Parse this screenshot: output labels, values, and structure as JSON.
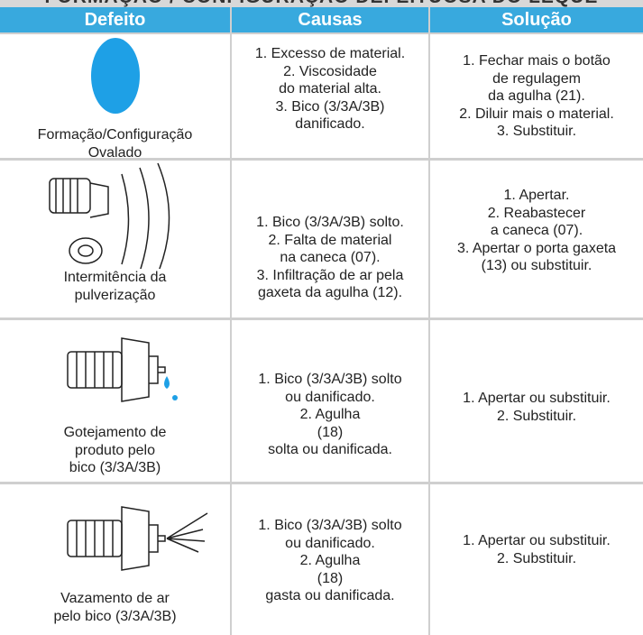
{
  "header": {
    "title": "FORMAÇÃO / CONFIGURAÇÃO DEFEITUOSA DO LEQUE"
  },
  "table": {
    "columns": [
      "Defeito",
      "Causas",
      "Solução"
    ],
    "rows": [
      {
        "defeito": [
          "Formação/Configuração",
          "Ovalado"
        ],
        "causas": [
          "1. Excesso de material.",
          "2. Viscosidade",
          "do material alta.",
          "3. Bico (3/3A/3B)",
          "danificado."
        ],
        "solucao": [
          "1. Fechar mais o botão",
          "de regulagem",
          "da agulha (21).",
          "2. Diluir mais o material.",
          "3. Substituir."
        ]
      },
      {
        "defeito": [
          "Intermitência da",
          "pulverização"
        ],
        "causas": [
          "1. Bico (3/3A/3B) solto.",
          "2. Falta de material",
          "na caneca (07).",
          "3. Infiltração de ar pela",
          "gaxeta da agulha (12)."
        ],
        "solucao": [
          "1. Apertar.",
          "2. Reabastecer",
          "a caneca (07).",
          "3. Apertar o porta gaxeta",
          "(13) ou substituir."
        ]
      },
      {
        "defeito": [
          "Gotejamento de",
          "produto pelo",
          "bico (3/3A/3B)"
        ],
        "causas": [
          "1. Bico (3/3A/3B) solto",
          "ou danificado.",
          "2. Agulha",
          "(18)",
          "solta ou danificada."
        ],
        "solucao": [
          "1. Apertar ou substituir.",
          "2. Substituir."
        ]
      },
      {
        "defeito": [
          "Vazamento de ar",
          "pelo bico (3/3A/3B)"
        ],
        "causas": [
          "1. Bico (3/3A/3B) solto",
          "ou danificado.",
          "2. Agulha",
          "(18)",
          "gasta ou danificada."
        ],
        "solucao": [
          "1. Apertar ou substituir.",
          "2. Substituir."
        ]
      }
    ]
  }
}
